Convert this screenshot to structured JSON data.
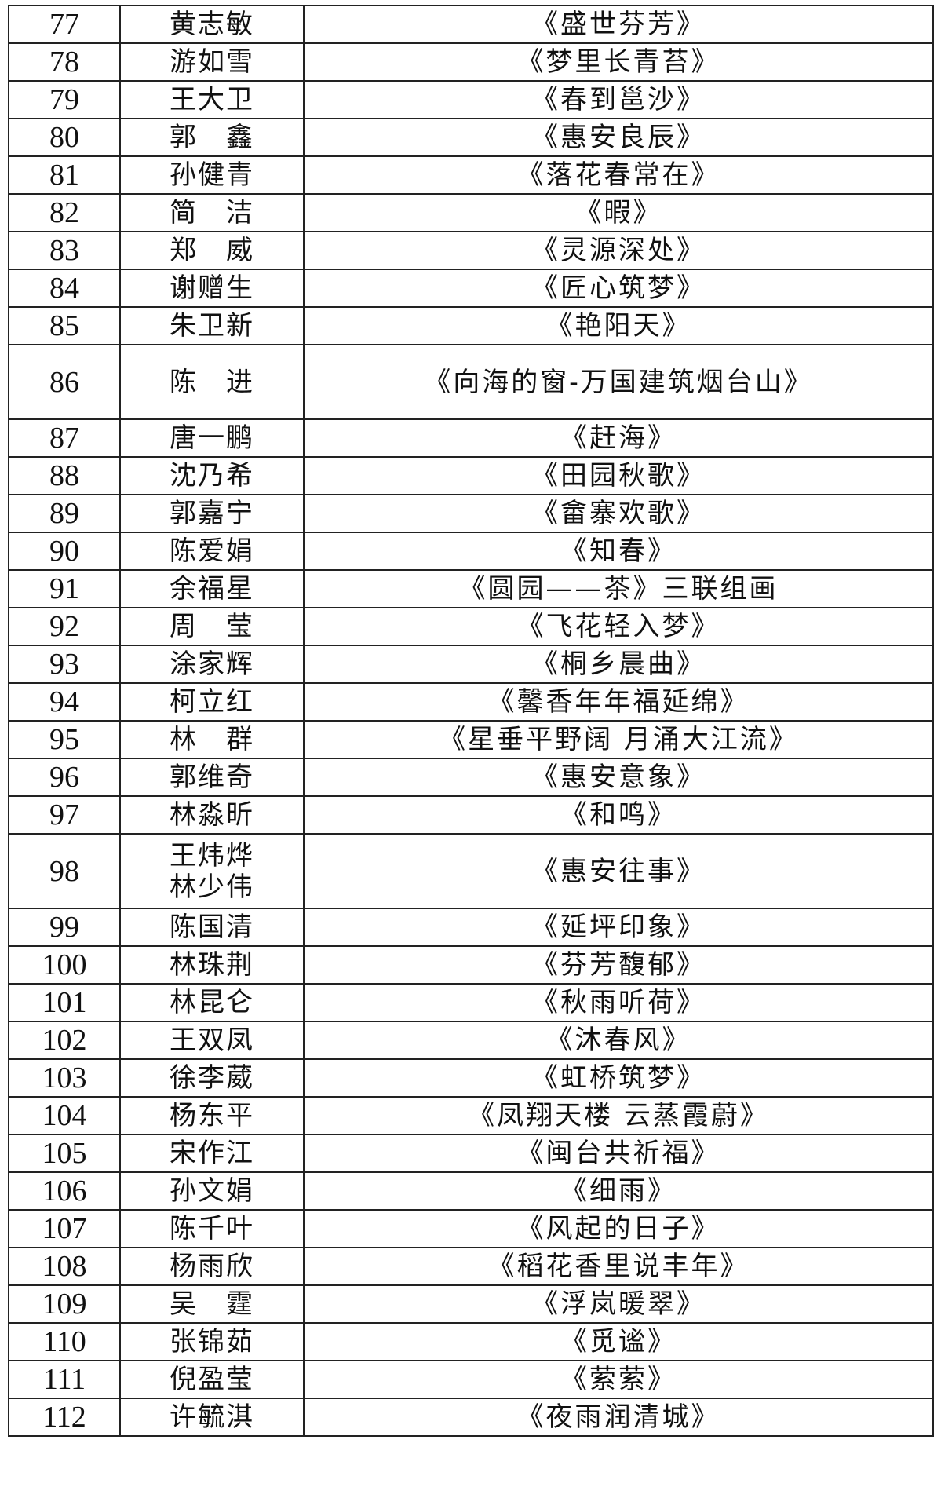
{
  "rows": [
    {
      "no": "77",
      "names": [
        "黄志敏"
      ],
      "title": "《盛世芬芳》"
    },
    {
      "no": "78",
      "names": [
        "游如雪"
      ],
      "title": "《梦里长青苔》"
    },
    {
      "no": "79",
      "names": [
        "王大卫"
      ],
      "title": "《春到邕沙》"
    },
    {
      "no": "80",
      "names": [
        "郭　鑫"
      ],
      "title": "《惠安良辰》"
    },
    {
      "no": "81",
      "names": [
        "孙健青"
      ],
      "title": "《落花春常在》"
    },
    {
      "no": "82",
      "names": [
        "简　洁"
      ],
      "title": "《暇》"
    },
    {
      "no": "83",
      "names": [
        "郑　威"
      ],
      "title": "《灵源深处》"
    },
    {
      "no": "84",
      "names": [
        "谢赠生"
      ],
      "title": "《匠心筑梦》"
    },
    {
      "no": "85",
      "names": [
        "朱卫新"
      ],
      "title": "《艳阳天》"
    },
    {
      "no": "86",
      "names": [
        "陈　进"
      ],
      "title": "《向海的窗-万国建筑烟台山》"
    },
    {
      "no": "87",
      "names": [
        "唐一鹏"
      ],
      "title": "《赶海》"
    },
    {
      "no": "88",
      "names": [
        "沈乃希"
      ],
      "title": "《田园秋歌》"
    },
    {
      "no": "89",
      "names": [
        "郭嘉宁"
      ],
      "title": "《畲寨欢歌》"
    },
    {
      "no": "90",
      "names": [
        "陈爱娟"
      ],
      "title": "《知春》"
    },
    {
      "no": "91",
      "names": [
        "余福星"
      ],
      "title": "《圆园——茶》三联组画"
    },
    {
      "no": "92",
      "names": [
        "周　莹"
      ],
      "title": "《飞花轻入梦》"
    },
    {
      "no": "93",
      "names": [
        "涂家辉"
      ],
      "title": "《桐乡晨曲》"
    },
    {
      "no": "94",
      "names": [
        "柯立红"
      ],
      "title": "《馨香年年福延绵》"
    },
    {
      "no": "95",
      "names": [
        "林　群"
      ],
      "title": "《星垂平野阔 月涌大江流》"
    },
    {
      "no": "96",
      "names": [
        "郭维奇"
      ],
      "title": "《惠安意象》"
    },
    {
      "no": "97",
      "names": [
        "林淼昕"
      ],
      "title": "《和鸣》"
    },
    {
      "no": "98",
      "names": [
        "王炜烨",
        "林少伟"
      ],
      "title": "《惠安往事》"
    },
    {
      "no": "99",
      "names": [
        "陈国清"
      ],
      "title": "《延坪印象》"
    },
    {
      "no": "100",
      "names": [
        "林珠荆"
      ],
      "title": "《芬芳馥郁》"
    },
    {
      "no": "101",
      "names": [
        "林昆仑"
      ],
      "title": "《秋雨听荷》"
    },
    {
      "no": "102",
      "names": [
        "王双凤"
      ],
      "title": "《沐春风》"
    },
    {
      "no": "103",
      "names": [
        "徐李葳"
      ],
      "title": "《虹桥筑梦》"
    },
    {
      "no": "104",
      "names": [
        "杨东平"
      ],
      "title": "《凤翔天楼 云蒸霞蔚》"
    },
    {
      "no": "105",
      "names": [
        "宋作江"
      ],
      "title": "《闽台共祈福》"
    },
    {
      "no": "106",
      "names": [
        "孙文娟"
      ],
      "title": "《细雨》"
    },
    {
      "no": "107",
      "names": [
        "陈千叶"
      ],
      "title": "《风起的日子》"
    },
    {
      "no": "108",
      "names": [
        "杨雨欣"
      ],
      "title": "《稻花香里说丰年》"
    },
    {
      "no": "109",
      "names": [
        "吴　霆"
      ],
      "title": "《浮岚暖翠》"
    },
    {
      "no": "110",
      "names": [
        "张锦茹"
      ],
      "title": "《觅谧》"
    },
    {
      "no": "111",
      "names": [
        "倪盈莹"
      ],
      "title": "《萦萦》"
    },
    {
      "no": "112",
      "names": [
        "许毓淇"
      ],
      "title": "《夜雨润清城》"
    }
  ]
}
